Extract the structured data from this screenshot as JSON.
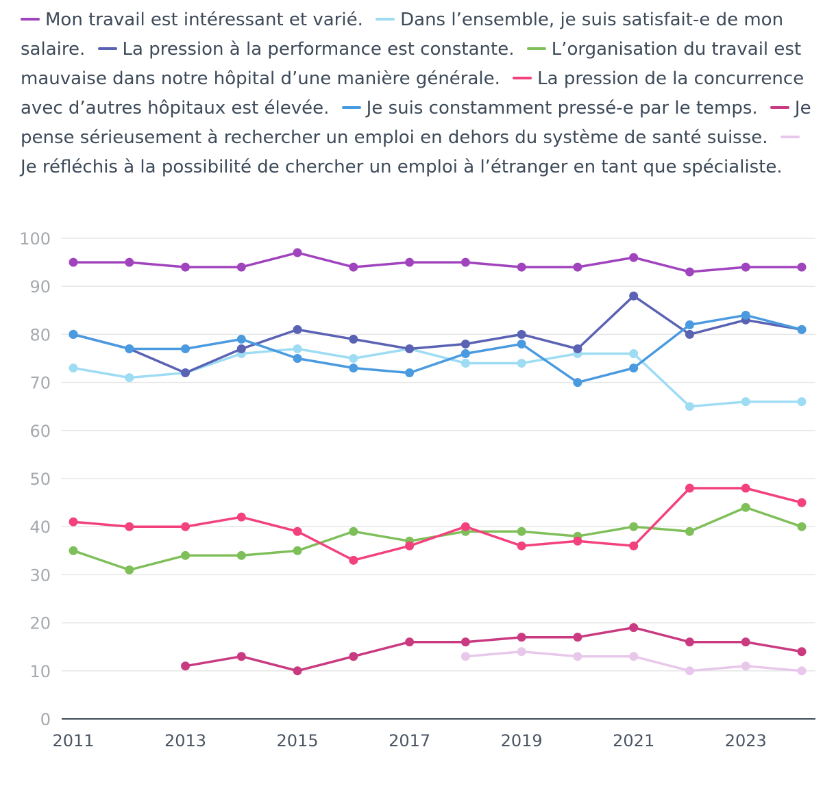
{
  "chart_data": {
    "type": "line",
    "title": "",
    "xlabel": "",
    "ylabel": "",
    "ylim": [
      0,
      100
    ],
    "y_ticks": [
      0,
      10,
      20,
      30,
      40,
      50,
      60,
      70,
      80,
      90,
      100
    ],
    "x": [
      2011,
      2012,
      2013,
      2014,
      2015,
      2016,
      2017,
      2018,
      2019,
      2020,
      2021,
      2022,
      2023,
      2024
    ],
    "x_tick_labels": [
      "2011",
      "2013",
      "2015",
      "2017",
      "2019",
      "2021",
      "2023"
    ],
    "legend_position": "top",
    "grid": true,
    "series": [
      {
        "name": "Mon travail est intéressant et varié.",
        "color": "#a044be",
        "values": [
          95,
          95,
          94,
          94,
          97,
          94,
          95,
          95,
          94,
          94,
          96,
          93,
          94,
          94
        ]
      },
      {
        "name": "Dans l’ensemble, je suis satisfait-e de mon salaire.",
        "color": "#9edcf4",
        "values": [
          73,
          71,
          72,
          76,
          77,
          75,
          77,
          74,
          74,
          76,
          76,
          65,
          66,
          66
        ]
      },
      {
        "name": "La pression à la performance est constante.",
        "color": "#5a62b3",
        "values": [
          80,
          77,
          72,
          77,
          81,
          79,
          77,
          78,
          80,
          77,
          88,
          80,
          83,
          81
        ]
      },
      {
        "name": "L’organisation du travail est mauvaise dans notre hôpital d’une manière générale.",
        "color": "#7fbf5a",
        "values": [
          35,
          31,
          34,
          34,
          35,
          39,
          37,
          39,
          39,
          38,
          40,
          39,
          44,
          40
        ]
      },
      {
        "name": "La pression de la concurrence avec d’autres hôpitaux est élevée.",
        "color": "#f2417d",
        "values": [
          41,
          40,
          40,
          42,
          39,
          33,
          36,
          40,
          36,
          37,
          36,
          48,
          48,
          45
        ]
      },
      {
        "name": "Je suis constamment pressé-e par le temps.",
        "color": "#4a9ae0",
        "values": [
          80,
          77,
          77,
          79,
          75,
          73,
          72,
          76,
          78,
          70,
          73,
          82,
          84,
          81
        ]
      },
      {
        "name": "Je pense sérieusement à rechercher un emploi en dehors du système de santé suisse.",
        "color": "#c93a80",
        "values": [
          null,
          null,
          11,
          13,
          10,
          13,
          16,
          16,
          17,
          17,
          19,
          16,
          16,
          14
        ]
      },
      {
        "name": "Je réfléchis à la possibilité de chercher un emploi à l’étranger en tant que spécialiste.",
        "color": "#e8c8ea",
        "values": [
          null,
          null,
          null,
          null,
          null,
          null,
          null,
          13,
          14,
          13,
          13,
          10,
          11,
          10
        ]
      }
    ]
  }
}
